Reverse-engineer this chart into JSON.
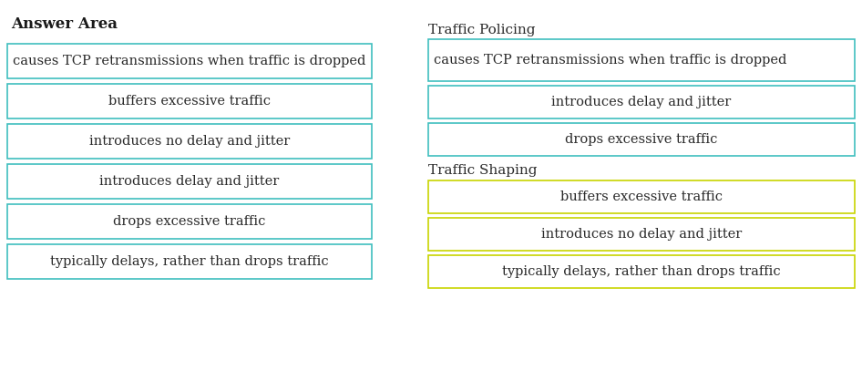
{
  "title": "Answer Area",
  "title_fontsize": 12,
  "left_items": [
    "causes TCP retransmissions when traffic is dropped",
    "buffers excessive traffic",
    "introduces no delay and jitter",
    "introduces delay and jitter",
    "drops excessive traffic",
    "typically delays, rather than drops traffic"
  ],
  "policing_label": "Traffic Policing",
  "policing_items": [
    "causes TCP retransmissions when traffic is dropped",
    "introduces delay and jitter",
    "drops excessive traffic"
  ],
  "shaping_label": "Traffic Shaping",
  "shaping_items": [
    "buffers excessive traffic",
    "introduces no delay and jitter",
    "typically delays, rather than drops traffic"
  ],
  "left_box_border": "#3fbfbf",
  "right_policing_border": "#3fbfbf",
  "right_shaping_border": "#c8d400",
  "box_fill": "#ffffff",
  "text_color": "#2a2a2a",
  "bg_color": "#ffffff",
  "font_size": 10.5,
  "label_font_size": 11
}
